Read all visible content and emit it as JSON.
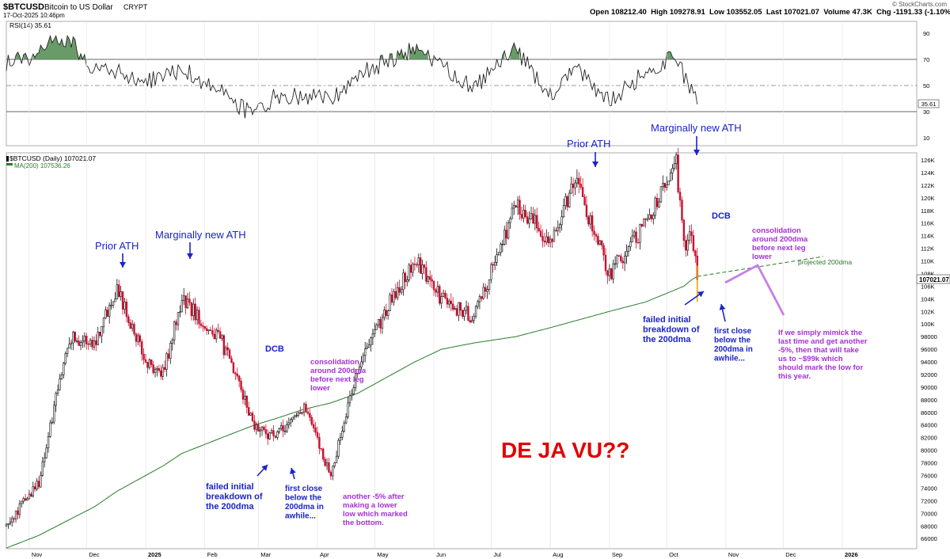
{
  "header": {
    "symbol": "$BTCUSD",
    "name": "Bitcoin to US Dollar",
    "exchange": "CRYPT",
    "datetime": "17-Oct-2025 10:46pm",
    "ohlc_line": "Open 108212.40  High 109278.91  Low 103552.05  Last 107021.07  Volume 47.3K  Chg -1191.33 (-1.10%)",
    "brand": "© StockCharts.com"
  },
  "rsi_panel": {
    "label": "RSI(14) 35.61",
    "current": "35.61",
    "ticks": [
      "90",
      "70",
      "50",
      "30",
      "10"
    ],
    "overbought": 70,
    "oversold": 30
  },
  "price_panel": {
    "legend_symbol": "$BTCUSD (Daily) 107021.07",
    "legend_ma": "MA(200) 107536.26",
    "last_label": "107021.07",
    "y_ticks": [
      "126K",
      "124K",
      "122K",
      "120K",
      "118K",
      "116K",
      "114K",
      "112K",
      "110K",
      "108K",
      "106K",
      "104K",
      "102K",
      "100K",
      "98000",
      "96000",
      "94000",
      "92000",
      "90000",
      "88000",
      "86000",
      "84000",
      "82000",
      "80000",
      "78000",
      "76000",
      "74000",
      "72000",
      "70000",
      "68000",
      "66000"
    ],
    "x_ticks": [
      "Nov",
      "Dec",
      "2025",
      "Feb",
      "Mar",
      "Apr",
      "May",
      "Jun",
      "Jul",
      "Aug",
      "Sep",
      "Oct",
      "Nov",
      "Dec",
      "2026"
    ]
  },
  "annotations": {
    "prior_ath_1": "Prior ATH",
    "new_ath_1": "Marginally new ATH",
    "dcb_1": "DCB",
    "consolidation_1": [
      "consolidation",
      "around 200dma",
      "before next leg",
      "lower"
    ],
    "failed_1": [
      "failed initial",
      "breakdown of",
      "the 200dma"
    ],
    "first_close_1": [
      "first close",
      "below the",
      "200dma in",
      "awhile..."
    ],
    "another_5": [
      "another -5% after",
      "making a lower",
      "low which marked",
      "the bottom."
    ],
    "prior_ath_2": "Prior ATH",
    "new_ath_2": "Marginally new ATH",
    "dcb_2": "DCB",
    "consolidation_2": [
      "consolidation",
      "around 200dma",
      "before next leg",
      "lower"
    ],
    "projected": "projected 200dma",
    "failed_2": [
      "failed initial",
      "breakdown of",
      "the 200dma"
    ],
    "first_close_2": [
      "first close",
      "below the",
      "200dma in",
      "awhile..."
    ],
    "mimick": [
      "If we simply mimick the",
      "last time and get another",
      "-5%, then that will take",
      "us to ~$99k which",
      "should mark the low for",
      "this year."
    ],
    "dejavu": "DE JA VU??"
  },
  "chart_data": [
    {
      "type": "line",
      "title": "RSI(14) 35.61",
      "ylim": [
        0,
        100
      ],
      "x": [
        "2024-10-20",
        "2024-11-01",
        "2024-11-12",
        "2024-11-22",
        "2024-12-05",
        "2024-12-17",
        "2025-01-01",
        "2025-01-20",
        "2025-02-10",
        "2025-02-27",
        "2025-03-10",
        "2025-04-08",
        "2025-04-25",
        "2025-05-22",
        "2025-06-22",
        "2025-07-14",
        "2025-08-02",
        "2025-08-14",
        "2025-09-01",
        "2025-09-20",
        "2025-10-06",
        "2025-10-12",
        "2025-10-17"
      ],
      "series": [
        {
          "name": "RSI(14)",
          "values": [
            68,
            72,
            85,
            86,
            62,
            60,
            52,
            63,
            45,
            26,
            42,
            40,
            60,
            78,
            48,
            78,
            40,
            64,
            38,
            60,
            72,
            50,
            35.61
          ]
        }
      ]
    },
    {
      "type": "line",
      "title": "$BTCUSD (Daily) 107021.07",
      "ylim": [
        65000,
        127000
      ],
      "x": [
        "2024-10-20",
        "2024-11-06",
        "2024-11-22",
        "2024-12-05",
        "2024-12-17",
        "2025-01-01",
        "2025-01-10",
        "2025-01-20",
        "2025-02-10",
        "2025-02-27",
        "2025-03-10",
        "2025-03-25",
        "2025-04-08",
        "2025-04-22",
        "2025-05-10",
        "2025-05-22",
        "2025-06-05",
        "2025-06-22",
        "2025-07-14",
        "2025-08-02",
        "2025-08-14",
        "2025-09-01",
        "2025-09-20",
        "2025-10-06",
        "2025-10-10",
        "2025-10-14",
        "2025-10-17"
      ],
      "series": [
        {
          "name": "$BTCUSD",
          "values": [
            68000,
            75000,
            98000,
            97000,
            106000,
            94000,
            92000,
            104000,
            97000,
            84000,
            82000,
            87000,
            76000,
            93000,
            104000,
            110000,
            104000,
            101000,
            119000,
            113000,
            123000,
            108000,
            116000,
            125500,
            112000,
            115000,
            107021.07
          ]
        },
        {
          "name": "MA(200)",
          "values": [
            64500,
            66500,
            69000,
            71000,
            73500,
            76000,
            77500,
            79500,
            82000,
            84000,
            85000,
            86500,
            87500,
            89000,
            92000,
            94000,
            96000,
            97000,
            98000,
            99500,
            100500,
            102000,
            103500,
            105500,
            106000,
            107000,
            107536.26
          ]
        }
      ]
    }
  ]
}
